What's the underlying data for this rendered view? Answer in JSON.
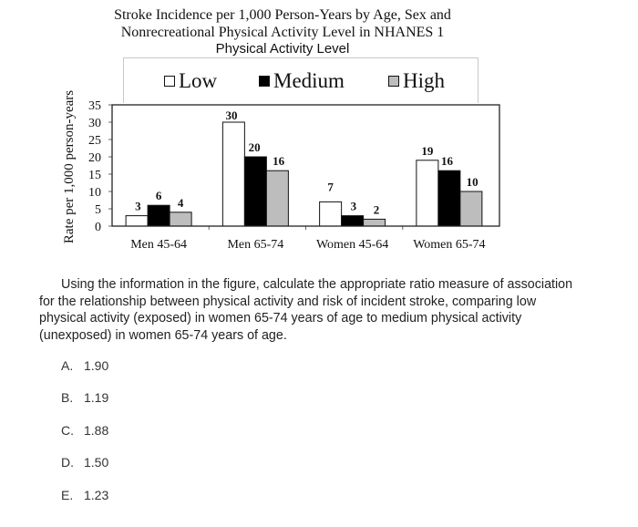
{
  "chart_data": {
    "type": "bar",
    "title": "Stroke Incidence per 1,000 Person-Years by Age, Sex and Nonrecreational Physical Activity Level in NHANES 1",
    "title_lines": [
      "Stroke Incidence per 1,000 Person-Years by Age, Sex and",
      "Nonrecreational Physical Activity Level in NHANES 1"
    ],
    "legend_title": "Physical Activity Level",
    "legend_position": "top",
    "xlabel": "",
    "ylabel": "Rate per 1,000 person-years",
    "ylim": [
      0,
      35
    ],
    "yticks": [
      0,
      5,
      10,
      15,
      20,
      25,
      30,
      35
    ],
    "grid": false,
    "categories": [
      "Men 45-64",
      "Men 65-74",
      "Women 45-64",
      "Women 65-74"
    ],
    "series": [
      {
        "name": "Low",
        "color": "#ffffff",
        "values": [
          3,
          30,
          7,
          19
        ]
      },
      {
        "name": "Medium",
        "color": "#000000",
        "values": [
          6,
          20,
          3,
          16
        ]
      },
      {
        "name": "High",
        "color": "#bdbdbd",
        "values": [
          4,
          16,
          2,
          10
        ]
      }
    ],
    "data_labels": true
  },
  "question": {
    "text": "Using the information in the figure, calculate the appropriate ratio measure of association for the relationship between physical activity and risk of incident stroke, comparing low physical activity (exposed) in women 65-74 years of age to medium physical activity (unexposed) in women 65-74 years of age.",
    "lines": [
      "Using the information in the figure, calculate the appropriate ratio measure of association",
      "for the relationship between physical activity and risk of incident stroke, comparing low",
      "physical activity (exposed) in women 65-74 years of age to medium physical activity",
      "(unexposed) in women 65-74 years of age."
    ],
    "options": [
      {
        "letter": "A.",
        "value": "1.90"
      },
      {
        "letter": "B.",
        "value": "1.19"
      },
      {
        "letter": "C.",
        "value": "1.88"
      },
      {
        "letter": "D.",
        "value": "1.50"
      },
      {
        "letter": "E.",
        "value": "1.23"
      }
    ]
  }
}
